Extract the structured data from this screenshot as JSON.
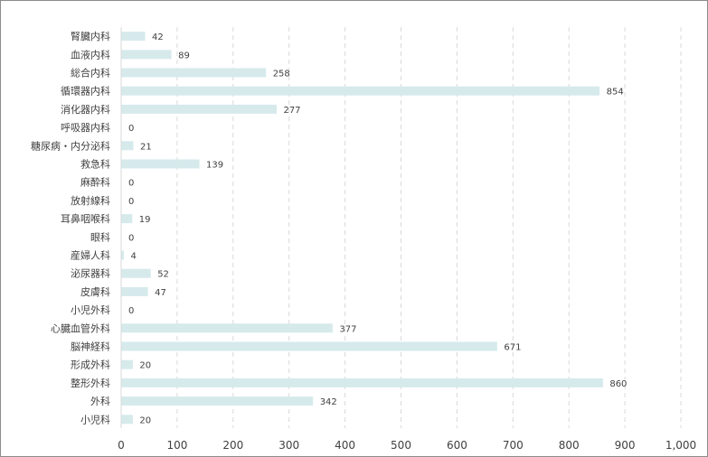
{
  "chart_data": {
    "type": "bar",
    "orientation": "horizontal",
    "categories": [
      "腎臓内科",
      "血液内科",
      "総合内科",
      "循環器内科",
      "消化器内科",
      "呼吸器内科",
      "糖尿病・内分泌科",
      "救急科",
      "麻酔科",
      "放射線科",
      "耳鼻咽喉科",
      "眼科",
      "産婦人科",
      "泌尿器科",
      "皮膚科",
      "小児外科",
      "心臓血管外科",
      "脳神経科",
      "形成外科",
      "整形外科",
      "外科",
      "小児科"
    ],
    "values": [
      42,
      89,
      258,
      854,
      277,
      0,
      21,
      139,
      0,
      0,
      19,
      0,
      4,
      52,
      47,
      0,
      377,
      671,
      20,
      860,
      342,
      20
    ],
    "value_labels": [
      "42",
      "89",
      "258",
      "854",
      "277",
      "0",
      "21",
      "139",
      "0",
      "0",
      "19",
      "0",
      "4",
      "52",
      "47",
      "0",
      "377",
      "671",
      "20",
      "860",
      "342",
      "20"
    ],
    "xlim": [
      0,
      1000
    ],
    "xticks": [
      0,
      100,
      200,
      300,
      400,
      500,
      600,
      700,
      800,
      900,
      1000
    ],
    "xtick_labels": [
      "0",
      "100",
      "200",
      "300",
      "400",
      "500",
      "600",
      "700",
      "800",
      "900",
      "1,000"
    ],
    "grid": "vertical-dashed",
    "legend": "none",
    "bar_color": "#d6eaec",
    "grid_color": "#d9d9d9",
    "text_color": "#404040"
  }
}
